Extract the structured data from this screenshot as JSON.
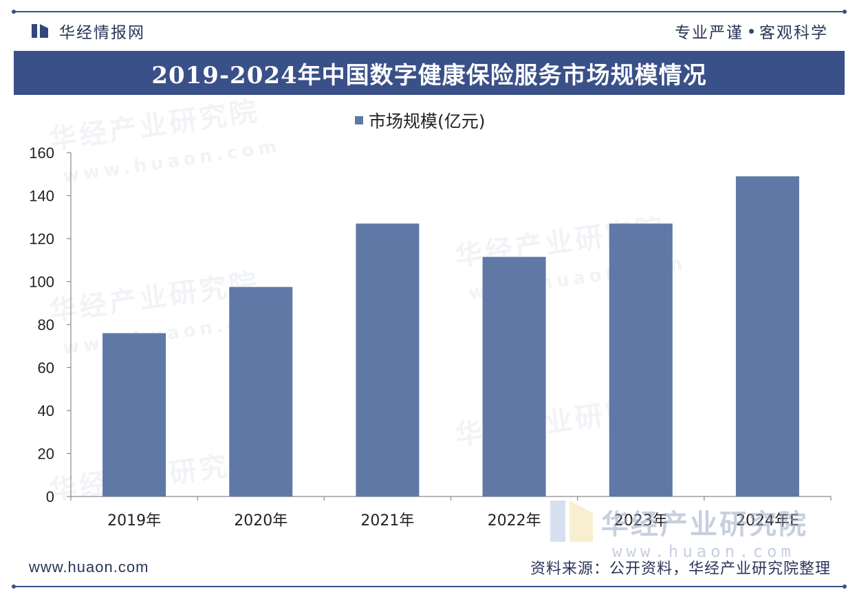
{
  "header": {
    "brand_name": "华经情报网",
    "slogan_left": "专业严谨",
    "slogan_right": "客观科学"
  },
  "title": "2019-2024年中国数字健康保险服务市场规模情况",
  "legend": {
    "label": "市场规模(亿元)"
  },
  "watermark": {
    "text_cn": "华经产业研究院",
    "url": "www.huaon.com"
  },
  "bottom_watermark": {
    "text_cn": "华经产业研究院",
    "url": "www.huaon.com"
  },
  "footer": {
    "website": "www.huaon.com",
    "source": "资料来源：公开资料，华经产业研究院整理"
  },
  "colors": {
    "bar": "#5f78a6",
    "banner": "#3a5088",
    "brand": "#33477a"
  },
  "chart_data": {
    "type": "bar",
    "title": "2019-2024年中国数字健康保险服务市场规模情况",
    "categories": [
      "2019年",
      "2020年",
      "2021年",
      "2022年",
      "2023年",
      "2024年E"
    ],
    "series": [
      {
        "name": "市场规模(亿元)",
        "values": [
          76,
          97.5,
          127,
          111.5,
          127,
          149
        ]
      }
    ],
    "xlabel": "",
    "ylabel": "",
    "ylim": [
      0,
      160
    ],
    "yticks": [
      0,
      20,
      40,
      60,
      80,
      100,
      120,
      140,
      160
    ],
    "grid": false,
    "legend_position": "top-center"
  }
}
